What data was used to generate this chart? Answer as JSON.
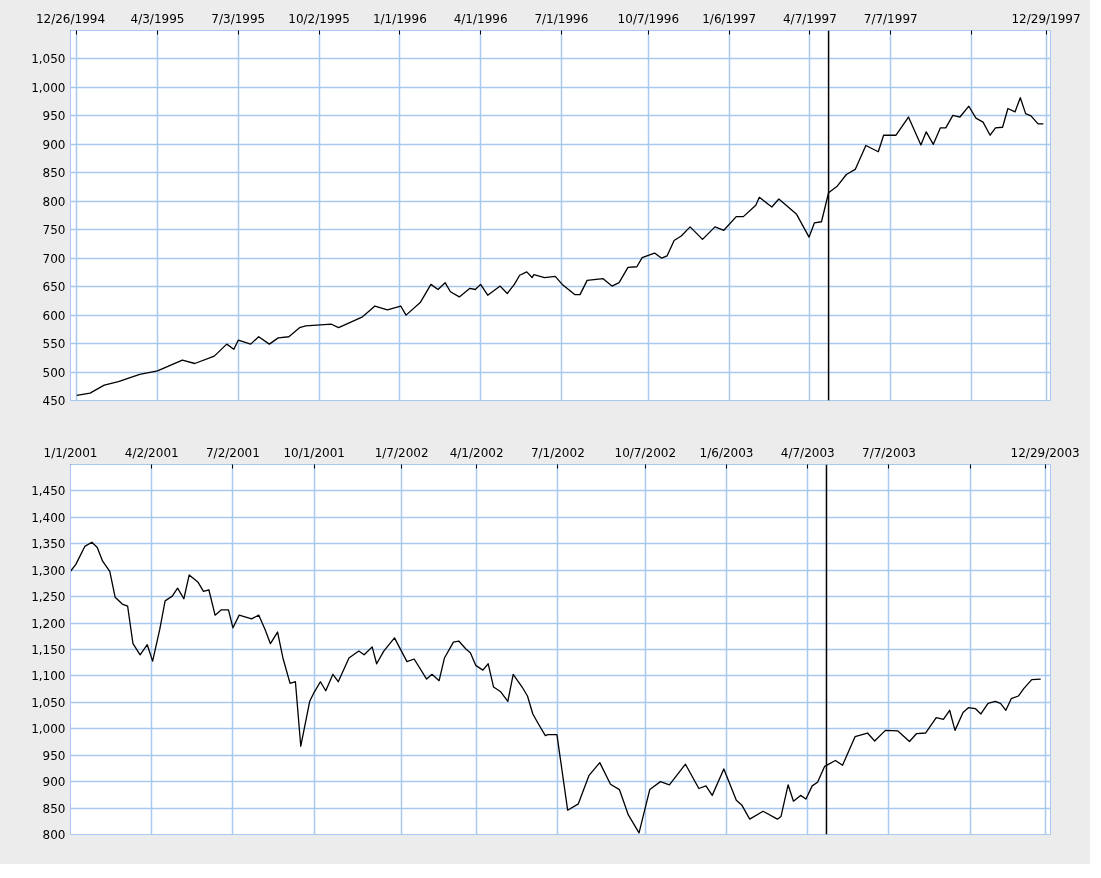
{
  "chart_data": [
    {
      "type": "line",
      "grid": true,
      "ylim": [
        450,
        1100
      ],
      "yticks": [
        450,
        500,
        550,
        600,
        650,
        700,
        750,
        800,
        850,
        900,
        950,
        {
          "value": 1000,
          "label": "1,000"
        },
        {
          "value": 1050,
          "label": "1,050"
        }
      ],
      "xlim": [
        "1994-12-26",
        "1998-01-03"
      ],
      "xticks": [
        {
          "value": "1994-12-26",
          "label": "12/26/1994"
        },
        {
          "value": "1995-01-02",
          "label": null
        },
        {
          "value": "1995-04-03",
          "label": "4/3/1995"
        },
        {
          "value": "1995-07-03",
          "label": "7/3/1995"
        },
        {
          "value": "1995-10-02",
          "label": "10/2/1995"
        },
        {
          "value": "1996-01-01",
          "label": "1/1/1996"
        },
        {
          "value": "1996-04-01",
          "label": "4/1/1996"
        },
        {
          "value": "1996-07-01",
          "label": "7/1/1996"
        },
        {
          "value": "1996-10-07",
          "label": "10/7/1996"
        },
        {
          "value": "1997-01-06",
          "label": "1/6/1997"
        },
        {
          "value": "1997-04-07",
          "label": "4/7/1997"
        },
        {
          "value": "1997-07-07",
          "label": "7/7/1997"
        },
        {
          "value": "1997-10-06",
          "label": null
        },
        {
          "value": "1997-12-29",
          "label": "12/29/1997"
        }
      ],
      "ref_lines": [
        {
          "axis": "x",
          "value": "1997-04-28",
          "color": "#000000"
        }
      ],
      "series": [
        {
          "color": "#000000",
          "x": [
            "1995-01-02",
            "1995-01-17",
            "1995-02-02",
            "1995-02-18",
            "1995-03-14",
            "1995-04-03",
            "1995-05-01",
            "1995-05-15",
            "1995-06-06",
            "1995-06-20",
            "1995-06-28",
            "1995-07-03",
            "1995-07-17",
            "1995-07-26",
            "1995-08-07",
            "1995-08-17",
            "1995-08-29",
            "1995-09-10",
            "1995-09-17",
            "1995-10-16",
            "1995-10-24",
            "1995-11-20",
            "1995-12-04",
            "1995-12-18",
            "1996-01-02",
            "1996-01-08",
            "1996-01-24",
            "1996-02-05",
            "1996-02-13",
            "1996-02-21",
            "1996-02-27",
            "1996-03-08",
            "1996-03-20",
            "1996-03-26",
            "1996-04-01",
            "1996-04-09",
            "1996-04-23",
            "1996-05-01",
            "1996-05-09",
            "1996-05-15",
            "1996-05-23",
            "1996-05-29",
            "1996-05-31",
            "1996-06-12",
            "1996-06-24",
            "1996-07-02",
            "1996-07-16",
            "1996-07-22",
            "1996-07-30",
            "1996-08-17",
            "1996-08-27",
            "1996-09-04",
            "1996-09-14",
            "1996-09-24",
            "1996-09-30",
            "1996-10-14",
            "1996-10-22",
            "1996-10-28",
            "1996-11-05",
            "1996-11-13",
            "1996-11-23",
            "1996-12-07",
            "1996-12-21",
            "1996-12-31",
            "1997-01-14",
            "1997-01-22",
            "1997-02-05",
            "1997-02-09",
            "1997-02-23",
            "1997-03-03",
            "1997-03-23",
            "1997-04-06",
            "1997-04-12",
            "1997-04-20",
            "1997-04-28",
            "1997-05-08",
            "1997-05-18",
            "1997-05-28",
            "1997-06-09",
            "1997-06-23",
            "1997-06-29",
            "1997-07-13",
            "1997-07-27",
            "1997-08-10",
            "1997-08-16",
            "1997-08-24",
            "1997-09-01",
            "1997-09-07",
            "1997-09-15",
            "1997-09-23",
            "1997-10-03",
            "1997-10-11",
            "1997-10-19",
            "1997-10-27",
            "1997-11-02",
            "1997-11-10",
            "1997-11-16",
            "1997-11-24",
            "1997-11-30",
            "1997-12-06",
            "1997-12-12",
            "1997-12-20",
            "1997-12-26"
          ],
          "values": [
            459,
            463,
            477,
            483,
            496,
            502,
            521,
            515,
            528,
            549,
            540,
            556,
            549,
            562,
            549,
            560,
            562,
            578,
            581,
            584,
            578,
            597,
            616,
            609,
            616,
            600,
            622,
            654,
            645,
            657,
            641,
            632,
            647,
            645,
            654,
            635,
            651,
            638,
            654,
            670,
            676,
            666,
            671,
            666,
            668,
            654,
            636,
            636,
            661,
            664,
            651,
            657,
            684,
            685,
            701,
            709,
            700,
            704,
            731,
            739,
            755,
            733,
            755,
            749,
            773,
            773,
            793,
            807,
            790,
            804,
            777,
            737,
            762,
            764,
            815,
            827,
            847,
            856,
            898,
            887,
            916,
            916,
            948,
            899,
            922,
            900,
            929,
            929,
            951,
            948,
            967,
            946,
            939,
            916,
            929,
            930,
            963,
            957,
            982,
            954,
            950,
            936,
            936
          ]
        }
      ]
    },
    {
      "type": "line",
      "grid": true,
      "ylim": [
        800,
        1500
      ],
      "yticks": [
        800,
        850,
        900,
        950,
        {
          "value": 1000,
          "label": "1,000"
        },
        {
          "value": 1050,
          "label": "1,050"
        },
        {
          "value": 1100,
          "label": "1,100"
        },
        {
          "value": 1150,
          "label": "1,150"
        },
        {
          "value": 1200,
          "label": "1,200"
        },
        {
          "value": 1250,
          "label": "1,250"
        },
        {
          "value": 1300,
          "label": "1,300"
        },
        {
          "value": 1350,
          "label": "1,350"
        },
        {
          "value": 1400,
          "label": "1,400"
        },
        {
          "value": 1450,
          "label": "1,450"
        }
      ],
      "xlim": [
        "2001-01-01",
        "2004-01-04"
      ],
      "xticks": [
        {
          "value": "2001-01-01",
          "label": "1/1/2001"
        },
        {
          "value": "2001-04-02",
          "label": "4/2/2001"
        },
        {
          "value": "2001-07-02",
          "label": "7/2/2001"
        },
        {
          "value": "2001-10-01",
          "label": "10/1/2001"
        },
        {
          "value": "2002-01-07",
          "label": "1/7/2002"
        },
        {
          "value": "2002-04-01",
          "label": "4/1/2002"
        },
        {
          "value": "2002-07-01",
          "label": "7/1/2002"
        },
        {
          "value": "2002-10-07",
          "label": "10/7/2002"
        },
        {
          "value": "2003-01-06",
          "label": "1/6/2003"
        },
        {
          "value": "2003-04-07",
          "label": "4/7/2003"
        },
        {
          "value": "2003-07-07",
          "label": "7/7/2003"
        },
        {
          "value": "2003-10-06",
          "label": null
        },
        {
          "value": "2003-12-29",
          "label": "12/29/2003"
        }
      ],
      "ref_lines": [
        {
          "axis": "x",
          "value": "2003-04-28",
          "color": "#000000"
        }
      ],
      "series": [
        {
          "color": "#000000",
          "x": [
            "2001-01-01",
            "2001-01-07",
            "2001-01-17",
            "2001-01-25",
            "2001-01-31",
            "2001-02-06",
            "2001-02-14",
            "2001-02-20",
            "2001-02-28",
            "2001-03-06",
            "2001-03-12",
            "2001-03-20",
            "2001-03-28",
            "2001-04-03",
            "2001-04-11",
            "2001-04-17",
            "2001-04-25",
            "2001-05-01",
            "2001-05-08",
            "2001-05-14",
            "2001-05-24",
            "2001-05-30",
            "2001-06-05",
            "2001-06-12",
            "2001-06-19",
            "2001-06-27",
            "2001-07-02",
            "2001-07-09",
            "2001-07-23",
            "2001-07-31",
            "2001-08-07",
            "2001-08-13",
            "2001-08-21",
            "2001-08-27",
            "2001-09-04",
            "2001-09-10",
            "2001-09-16",
            "2001-09-26",
            "2001-10-01",
            "2001-10-08",
            "2001-10-14",
            "2001-10-22",
            "2001-10-28",
            "2001-11-09",
            "2001-11-20",
            "2001-11-26",
            "2001-12-05",
            "2001-12-10",
            "2001-12-18",
            "2001-12-30",
            "2002-01-13",
            "2002-01-21",
            "2002-02-04",
            "2002-02-10",
            "2002-02-18",
            "2002-02-24",
            "2002-03-06",
            "2002-03-12",
            "2002-03-20",
            "2002-03-25",
            "2002-03-31",
            "2002-04-08",
            "2002-04-14",
            "2002-04-20",
            "2002-04-28",
            "2002-05-06",
            "2002-05-12",
            "2002-05-22",
            "2002-05-28",
            "2002-06-03",
            "2002-06-09",
            "2002-06-17",
            "2002-06-20",
            "2002-06-30",
            "2002-07-12",
            "2002-07-24",
            "2002-08-05",
            "2002-08-17",
            "2002-08-29",
            "2002-09-08",
            "2002-09-18",
            "2002-09-30",
            "2002-10-12",
            "2002-10-24",
            "2002-11-03",
            "2002-11-21",
            "2002-12-06",
            "2002-12-14",
            "2002-12-21",
            "2003-01-03",
            "2003-01-17",
            "2003-01-23",
            "2003-02-01",
            "2003-02-16",
            "2003-03-04",
            "2003-03-08",
            "2003-03-16",
            "2003-03-22",
            "2003-03-30",
            "2003-04-05",
            "2003-04-12",
            "2003-04-18",
            "2003-04-26",
            "2003-05-08",
            "2003-05-16",
            "2003-05-30",
            "2003-06-13",
            "2003-06-21",
            "2003-07-03",
            "2003-07-17",
            "2003-07-30",
            "2003-08-07",
            "2003-08-17",
            "2003-08-29",
            "2003-09-06",
            "2003-09-13",
            "2003-09-19",
            "2003-09-28",
            "2003-10-04",
            "2003-10-12",
            "2003-10-18",
            "2003-10-26",
            "2003-11-03",
            "2003-11-09",
            "2003-11-15",
            "2003-11-21",
            "2003-11-29",
            "2003-12-05",
            "2003-12-14",
            "2003-12-24"
          ],
          "values": [
            1298,
            1311,
            1345,
            1353,
            1343,
            1317,
            1298,
            1249,
            1236,
            1232,
            1161,
            1140,
            1159,
            1128,
            1188,
            1242,
            1251,
            1266,
            1246,
            1291,
            1277,
            1260,
            1263,
            1215,
            1225,
            1225,
            1191,
            1215,
            1208,
            1215,
            1188,
            1161,
            1183,
            1134,
            1086,
            1089,
            967,
            1052,
            1069,
            1089,
            1072,
            1103,
            1089,
            1134,
            1147,
            1140,
            1155,
            1123,
            1147,
            1172,
            1127,
            1132,
            1094,
            1103,
            1091,
            1134,
            1164,
            1166,
            1151,
            1144,
            1120,
            1111,
            1123,
            1079,
            1070,
            1052,
            1103,
            1079,
            1062,
            1028,
            1010,
            987,
            989,
            989,
            846,
            858,
            912,
            936,
            895,
            885,
            837,
            803,
            885,
            900,
            894,
            933,
            887,
            892,
            874,
            924,
            865,
            856,
            829,
            844,
            829,
            834,
            894,
            863,
            874,
            867,
            892,
            899,
            929,
            940,
            931,
            985,
            992,
            977,
            997,
            996,
            976,
            991,
            992,
            1021,
            1018,
            1035,
            997,
            1031,
            1040,
            1038,
            1028,
            1048,
            1052,
            1048,
            1035,
            1057,
            1062,
            1076,
            1093,
            1094
          ]
        }
      ]
    }
  ]
}
